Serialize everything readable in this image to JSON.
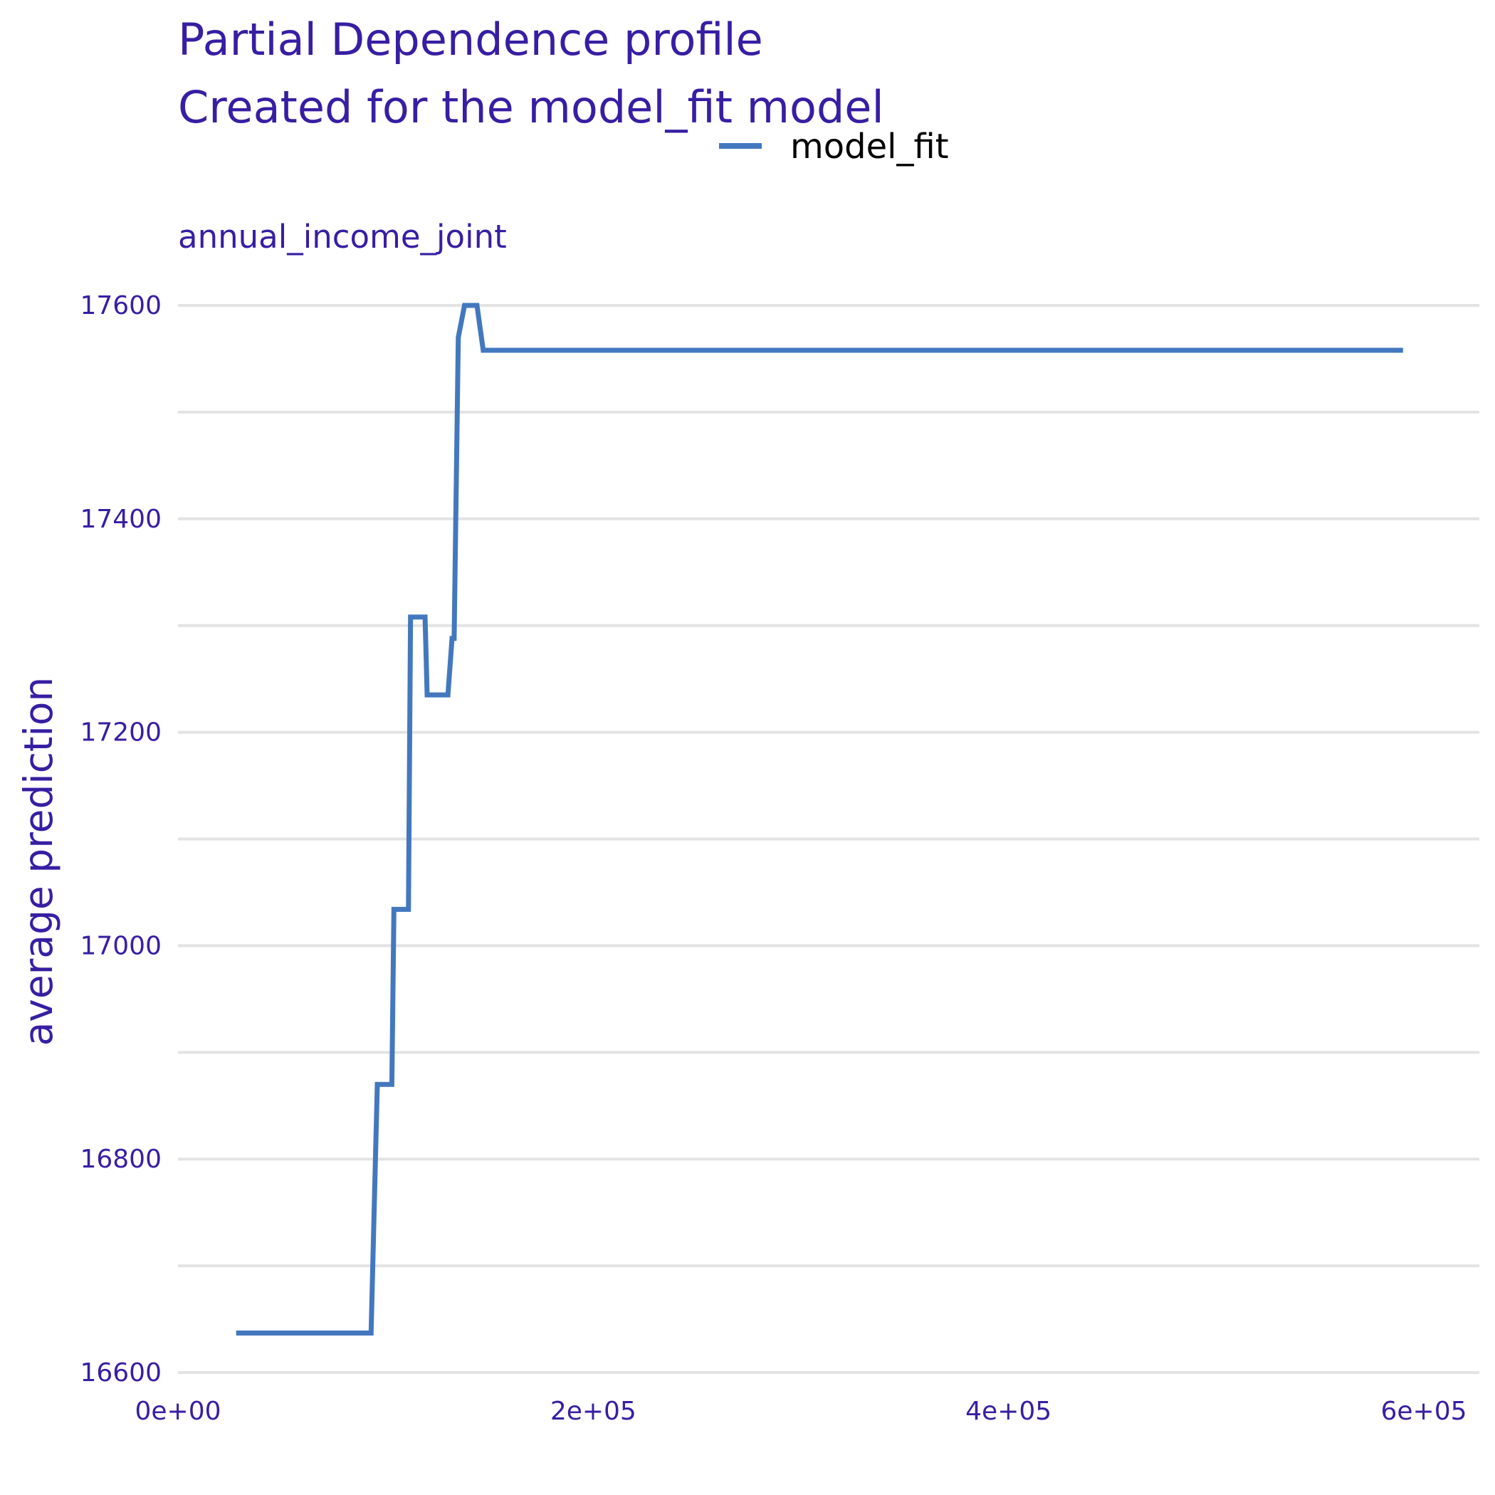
{
  "chart_data": {
    "type": "line",
    "title": "Partial Dependence profile",
    "subtitle": "Created for the model_fit model",
    "facet_label": "annual_income_joint",
    "xlabel": "",
    "ylabel": "average prediction",
    "xlim": [
      0,
      600000
    ],
    "ylim": [
      16600,
      17600
    ],
    "x_ticks": [
      0,
      200000,
      400000,
      600000
    ],
    "x_tick_labels": [
      "0e+00",
      "2e+05",
      "4e+05",
      "6e+05"
    ],
    "y_ticks": [
      16600,
      16800,
      17000,
      17200,
      17400,
      17600
    ],
    "y_tick_labels": [
      "16600",
      "16800",
      "17000",
      "17200",
      "17400",
      "17600"
    ],
    "grid": true,
    "legend_position": "top",
    "colors": {
      "text": "#371ea3",
      "grid": "#e3e3e3",
      "line": "#4378bf",
      "legend_text": "#000000"
    },
    "series": [
      {
        "name": "model_fit",
        "color": "#4378bf",
        "points": [
          [
            28000,
            16637
          ],
          [
            93000,
            16637
          ],
          [
            96000,
            16870
          ],
          [
            103000,
            16870
          ],
          [
            104000,
            17034
          ],
          [
            111000,
            17034
          ],
          [
            112000,
            17308
          ],
          [
            119000,
            17308
          ],
          [
            120000,
            17235
          ],
          [
            130000,
            17235
          ],
          [
            132000,
            17288
          ],
          [
            133000,
            17288
          ],
          [
            135000,
            17570
          ],
          [
            138000,
            17600
          ],
          [
            144000,
            17600
          ],
          [
            147000,
            17558
          ],
          [
            590000,
            17558
          ]
        ]
      }
    ]
  }
}
